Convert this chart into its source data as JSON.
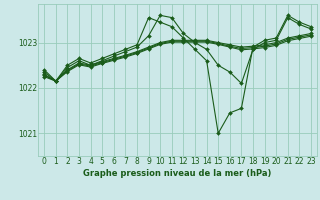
{
  "background_color": "#cce8e8",
  "grid_color": "#99ccbb",
  "line_color": "#1a5c1a",
  "title": "Graphe pression niveau de la mer (hPa)",
  "xlim": [
    -0.5,
    23.5
  ],
  "ylim": [
    1020.5,
    1023.85
  ],
  "yticks": [
    1021,
    1022,
    1023
  ],
  "xticks": [
    0,
    1,
    2,
    3,
    4,
    5,
    6,
    7,
    8,
    9,
    10,
    11,
    12,
    13,
    14,
    15,
    16,
    17,
    18,
    19,
    20,
    21,
    22,
    23
  ],
  "series": [
    {
      "x": [
        0,
        1,
        2,
        3,
        4,
        5,
        6,
        7,
        8,
        9,
        10,
        11,
        12,
        13,
        14,
        15,
        16,
        17,
        18,
        19,
        20,
        21,
        22,
        23
      ],
      "y": [
        1022.4,
        1022.15,
        1022.5,
        1022.65,
        1022.55,
        1022.65,
        1022.75,
        1022.85,
        1022.95,
        1023.55,
        1023.45,
        1023.35,
        1023.1,
        1022.85,
        1022.6,
        1021.0,
        1021.45,
        1021.55,
        1022.9,
        1023.05,
        1023.1,
        1023.6,
        1023.45,
        1023.35
      ]
    },
    {
      "x": [
        0,
        1,
        2,
        3,
        4,
        5,
        6,
        7,
        8,
        9,
        10,
        11,
        12,
        13,
        14,
        15,
        16,
        17,
        18,
        19,
        20,
        21,
        22,
        23
      ],
      "y": [
        1022.35,
        1022.15,
        1022.45,
        1022.6,
        1022.5,
        1022.6,
        1022.7,
        1022.8,
        1022.9,
        1023.15,
        1023.6,
        1023.55,
        1023.2,
        1023.0,
        1022.85,
        1022.5,
        1022.35,
        1022.1,
        1022.85,
        1023.0,
        1023.05,
        1023.55,
        1023.4,
        1023.3
      ]
    },
    {
      "x": [
        0,
        1,
        2,
        3,
        4,
        5,
        6,
        7,
        8,
        9,
        10,
        11,
        12,
        13,
        14,
        15,
        16,
        17,
        18,
        19,
        20,
        21,
        22,
        23
      ],
      "y": [
        1022.3,
        1022.15,
        1022.4,
        1022.55,
        1022.5,
        1022.58,
        1022.65,
        1022.72,
        1022.8,
        1022.9,
        1023.0,
        1023.05,
        1023.05,
        1023.05,
        1023.05,
        1023.0,
        1022.95,
        1022.9,
        1022.92,
        1022.95,
        1023.0,
        1023.1,
        1023.15,
        1023.2
      ]
    },
    {
      "x": [
        0,
        1,
        2,
        3,
        4,
        5,
        6,
        7,
        8,
        9,
        10,
        11,
        12,
        13,
        14,
        15,
        16,
        17,
        18,
        19,
        20,
        21,
        22,
        23
      ],
      "y": [
        1022.28,
        1022.15,
        1022.38,
        1022.53,
        1022.48,
        1022.56,
        1022.63,
        1022.7,
        1022.78,
        1022.88,
        1022.98,
        1023.03,
        1023.03,
        1023.03,
        1023.03,
        1022.98,
        1022.92,
        1022.87,
        1022.89,
        1022.92,
        1022.97,
        1023.07,
        1023.12,
        1023.17
      ]
    },
    {
      "x": [
        0,
        1,
        2,
        3,
        4,
        5,
        6,
        7,
        8,
        9,
        10,
        11,
        12,
        13,
        14,
        15,
        16,
        17,
        18,
        19,
        20,
        21,
        22,
        23
      ],
      "y": [
        1022.25,
        1022.15,
        1022.36,
        1022.51,
        1022.46,
        1022.54,
        1022.61,
        1022.68,
        1022.76,
        1022.86,
        1022.96,
        1023.01,
        1023.01,
        1023.01,
        1023.01,
        1022.96,
        1022.9,
        1022.84,
        1022.86,
        1022.89,
        1022.94,
        1023.04,
        1023.09,
        1023.14
      ]
    }
  ]
}
